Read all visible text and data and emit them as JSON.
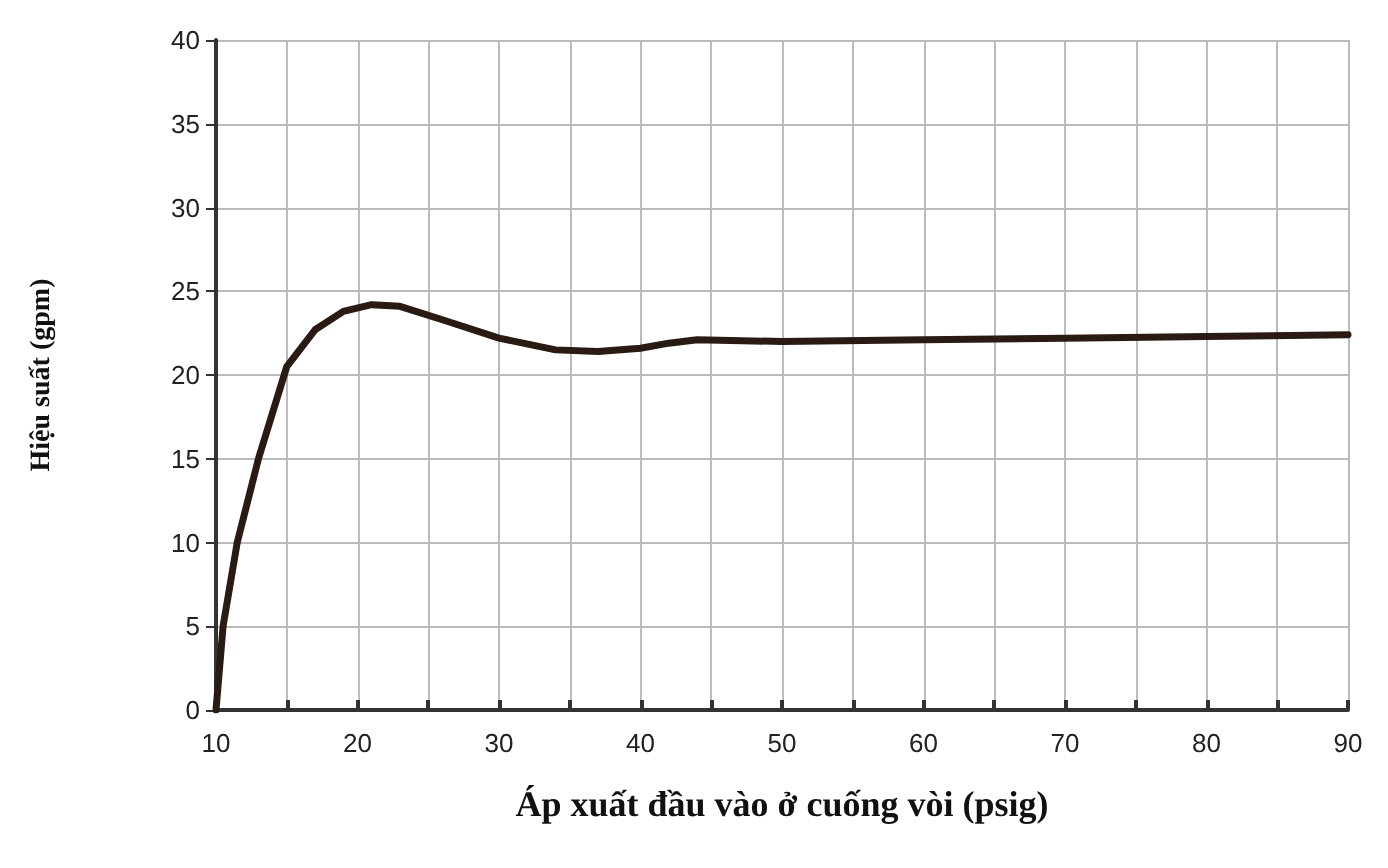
{
  "chart_data": {
    "type": "line",
    "xlabel": "Áp xuất đầu vào ở cuống vòi (psig)",
    "ylabel": "Hiệu suất (gpm)",
    "x": [
      10,
      10.5,
      11.5,
      13,
      15,
      17,
      19,
      21,
      23,
      26,
      30,
      34,
      37,
      40,
      42,
      44,
      50,
      60,
      70,
      80,
      90
    ],
    "series": [
      {
        "color": "#2a1a14",
        "values": [
          0,
          5,
          10,
          15,
          20.5,
          22.7,
          23.8,
          24.2,
          24.1,
          23.3,
          22.2,
          21.5,
          21.4,
          21.6,
          21.9,
          22.1,
          22,
          22.1,
          22.2,
          22.3,
          22.4
        ]
      }
    ],
    "xlim": [
      10,
      90
    ],
    "xticks": [
      10,
      {
        "value": 15,
        "label": null
      },
      20,
      {
        "value": 25,
        "label": null
      },
      30,
      {
        "value": 35,
        "label": null
      },
      40,
      {
        "value": 45,
        "label": null
      },
      50,
      {
        "value": 55,
        "label": null
      },
      60,
      {
        "value": 65,
        "label": null
      },
      70,
      {
        "value": 75,
        "label": null
      },
      80,
      {
        "value": 85,
        "label": null
      },
      90
    ],
    "ylim": [
      0,
      40
    ],
    "yticks": [
      0,
      5,
      10,
      15,
      20,
      25,
      30,
      35,
      40
    ],
    "grid": true,
    "marker": "none",
    "line_style": "solid"
  }
}
